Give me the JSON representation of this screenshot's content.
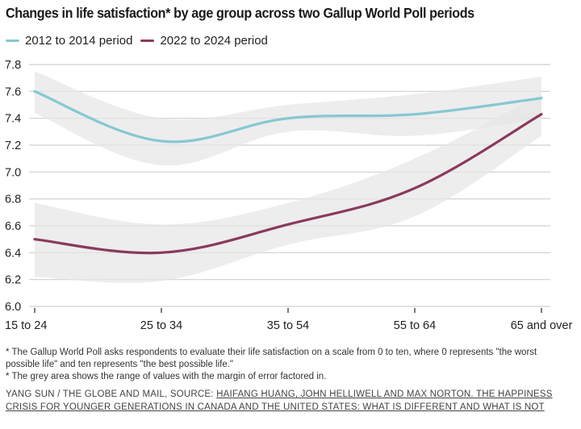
{
  "title": "Changes in life satisfaction* by age group across two Gallup World Poll periods",
  "legend": [
    {
      "label": "2012 to 2014 period",
      "color": "#86c8d2"
    },
    {
      "label": "2022 to 2024 period",
      "color": "#8a3a5e"
    }
  ],
  "notes": [
    "* The Gallup World Poll asks respondents to evaluate their life satisfaction on a scale from 0 to ten, where 0 represents \"the worst possible life\" and ten represents \"the best possible life.\"",
    "* The grey area shows the range of values with the margin of error factored in."
  ],
  "credit": {
    "prefix": "YANG SUN / THE GLOBE AND MAIL, SOURCE: ",
    "link_text": "HAIFANG HUANG, JOHN HELLIWELL AND MAX NORTON. THE HAPPINESS CRISIS FOR YOUNGER GENERATIONS IN CANADA AND THE UNITED STATES: WHAT IS DIFFERENT AND WHAT IS NOT"
  },
  "chart_data": {
    "type": "line",
    "title": "Changes in life satisfaction* by age group across two Gallup World Poll periods",
    "xlabel": "",
    "ylabel": "",
    "categories": [
      "15 to 24",
      "25 to 34",
      "35 to 54",
      "55 to 64",
      "65 and over"
    ],
    "ylim": [
      6.0,
      7.8
    ],
    "yticks": [
      "6.0",
      "6.2",
      "6.4",
      "6.6",
      "6.8",
      "7.0",
      "7.2",
      "7.4",
      "7.6",
      "7.8"
    ],
    "grid": true,
    "legend_position": "top-left",
    "band_color": "#e6e6e6",
    "series": [
      {
        "name": "2012 to 2014 period",
        "color": "#86c8d2",
        "values": [
          7.6,
          7.23,
          7.4,
          7.43,
          7.55
        ],
        "upper": [
          7.75,
          7.4,
          7.5,
          7.58,
          7.71
        ],
        "lower": [
          7.44,
          7.05,
          7.3,
          7.27,
          7.4
        ]
      },
      {
        "name": "2022 to 2024 period",
        "color": "#8a3a5e",
        "values": [
          6.5,
          6.4,
          6.61,
          6.88,
          7.43
        ],
        "upper": [
          6.77,
          6.61,
          6.77,
          7.1,
          7.58
        ],
        "lower": [
          6.22,
          6.19,
          6.46,
          6.67,
          7.27
        ]
      }
    ]
  }
}
